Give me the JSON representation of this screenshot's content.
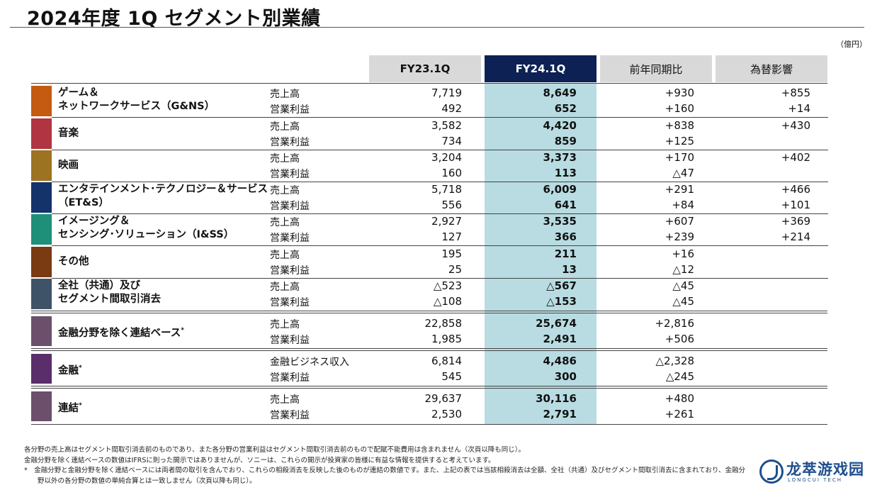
{
  "title": "2024年度 1Q セグメント別業績",
  "unit": "（億円）",
  "headers": [
    "FY23.1Q",
    "FY24.1Q",
    "前年同期比",
    "為替影響"
  ],
  "colors": {
    "header_gray": "#d9d9d9",
    "header_fy24": "#0d2154",
    "fy24_highlight": "#b8dce2"
  },
  "segments": [
    {
      "name1": "ゲーム＆",
      "name2": "ネットワークサービス（G&NS）",
      "color": "#c55a11",
      "rows": [
        {
          "label": "売上高",
          "fy23": "7,719",
          "fy24": "8,649",
          "yoy": "+930",
          "fx": "+855"
        },
        {
          "label": "営業利益",
          "fy23": "492",
          "fy24": "652",
          "yoy": "+160",
          "fx": "+14"
        }
      ]
    },
    {
      "name1": "音楽",
      "name2": "",
      "color": "#b03442",
      "rows": [
        {
          "label": "売上高",
          "fy23": "3,582",
          "fy24": "4,420",
          "yoy": "+838",
          "fx": "+430"
        },
        {
          "label": "営業利益",
          "fy23": "734",
          "fy24": "859",
          "yoy": "+125",
          "fx": ""
        }
      ]
    },
    {
      "name1": "映画",
      "name2": "",
      "color": "#9c7321",
      "rows": [
        {
          "label": "売上高",
          "fy23": "3,204",
          "fy24": "3,373",
          "yoy": "+170",
          "fx": "+402"
        },
        {
          "label": "営業利益",
          "fy23": "160",
          "fy24": "113",
          "yoy": "△47",
          "fx": ""
        }
      ]
    },
    {
      "name1": "エンタテインメント･テクノロジー＆サービス",
      "name2": "（ET&S）",
      "color": "#14336b",
      "rows": [
        {
          "label": "売上高",
          "fy23": "5,718",
          "fy24": "6,009",
          "yoy": "+291",
          "fx": "+466"
        },
        {
          "label": "営業利益",
          "fy23": "556",
          "fy24": "641",
          "yoy": "+84",
          "fx": "+101"
        }
      ]
    },
    {
      "name1": "イメージング＆",
      "name2": "センシング･ソリューション（I&SS）",
      "color": "#1e8f78",
      "rows": [
        {
          "label": "売上高",
          "fy23": "2,927",
          "fy24": "3,535",
          "yoy": "+607",
          "fx": "+369"
        },
        {
          "label": "営業利益",
          "fy23": "127",
          "fy24": "366",
          "yoy": "+239",
          "fx": "+214"
        }
      ]
    },
    {
      "name1": "その他",
      "name2": "",
      "color": "#7a3a12",
      "rows": [
        {
          "label": "売上高",
          "fy23": "195",
          "fy24": "211",
          "yoy": "+16",
          "fx": ""
        },
        {
          "label": "営業利益",
          "fy23": "25",
          "fy24": "13",
          "yoy": "△12",
          "fx": ""
        }
      ]
    },
    {
      "name1": "全社（共通）及び",
      "name2": "セグメント間取引消去",
      "color": "#3e5368",
      "rows": [
        {
          "label": "売上高",
          "fy23": "△523",
          "fy24": "△567",
          "yoy": "△45",
          "fx": ""
        },
        {
          "label": "営業利益",
          "fy23": "△108",
          "fy24": "△153",
          "yoy": "△45",
          "fx": ""
        }
      ]
    }
  ],
  "totals": [
    {
      "name": "金融分野を除く連結ベース",
      "mark": "*",
      "color": "#6b4f6b",
      "rows": [
        {
          "label": "売上高",
          "fy23": "22,858",
          "fy24": "25,674",
          "yoy": "+2,816"
        },
        {
          "label": "営業利益",
          "fy23": "1,985",
          "fy24": "2,491",
          "yoy": "+506"
        }
      ]
    },
    {
      "name": "金融",
      "mark": "*",
      "color": "#5a2d6b",
      "rows": [
        {
          "label": "金融ビジネス収入",
          "fy23": "6,814",
          "fy24": "4,486",
          "yoy": "△2,328"
        },
        {
          "label": "営業利益",
          "fy23": "545",
          "fy24": "300",
          "yoy": "△245"
        }
      ]
    },
    {
      "name": "連結",
      "mark": "*",
      "color": "#6b4f6b",
      "rows": [
        {
          "label": "売上高",
          "fy23": "29,637",
          "fy24": "30,116",
          "yoy": "+480"
        },
        {
          "label": "営業利益",
          "fy23": "2,530",
          "fy24": "2,791",
          "yoy": "+261"
        }
      ]
    }
  ],
  "notes": [
    "各分野の売上高はセグメント間取引消去前のものであり、また各分野の営業利益はセグメント間取引消去前のもので配賦不能費用は含まれません（次頁以降も同じ）。",
    "金融分野を除く連結ベースの数値はIFRSに則った開示ではありませんが、ソニーは、これらの開示が投資家の皆様に有益な情報を提供すると考えています。",
    "*　金融分野と金融分野を除く連結ベースには両者間の取引を含んでおり、これらの相殺消去を反映した後のものが連結の数値です。また、上記の表では当該相殺消去は全額、全社（共通）及びセグメント間取引消去に含まれており、金融分",
    "　　野以外の各分野の数値の単純合算とは一致しません（次頁以降も同じ）。"
  ],
  "logo": {
    "name": "龙萃游戏园",
    "sub": "LONGCUI TECH"
  }
}
